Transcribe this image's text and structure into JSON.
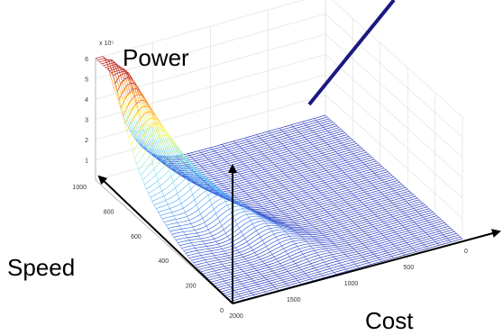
{
  "chart_data": {
    "type": "surface",
    "title": "",
    "axis_labels": {
      "z": "Power",
      "speed": "Speed",
      "cost": "Cost"
    },
    "z_ticks": [
      "1",
      "2",
      "3",
      "4",
      "5",
      "6"
    ],
    "z_exponent": "x 10⁵",
    "speed_ticks": [
      "0",
      "200",
      "400",
      "600",
      "800",
      "1000"
    ],
    "cost_ticks": [
      "2000",
      "1500",
      "1000",
      "500",
      "0"
    ],
    "zlim": [
      0,
      6
    ],
    "speed_range": [
      0,
      1000
    ],
    "cost_range": [
      0,
      2000
    ],
    "peak": {
      "speed": 1000,
      "cost": 2000,
      "z": 6
    },
    "colormap": [
      "#2233bb",
      "#4fa0ff",
      "#7fe6ee",
      "#ffff55",
      "#ff8a1a",
      "#b41515"
    ],
    "grid": true
  },
  "annotation": {
    "pointer_color": "#1a1a80"
  }
}
